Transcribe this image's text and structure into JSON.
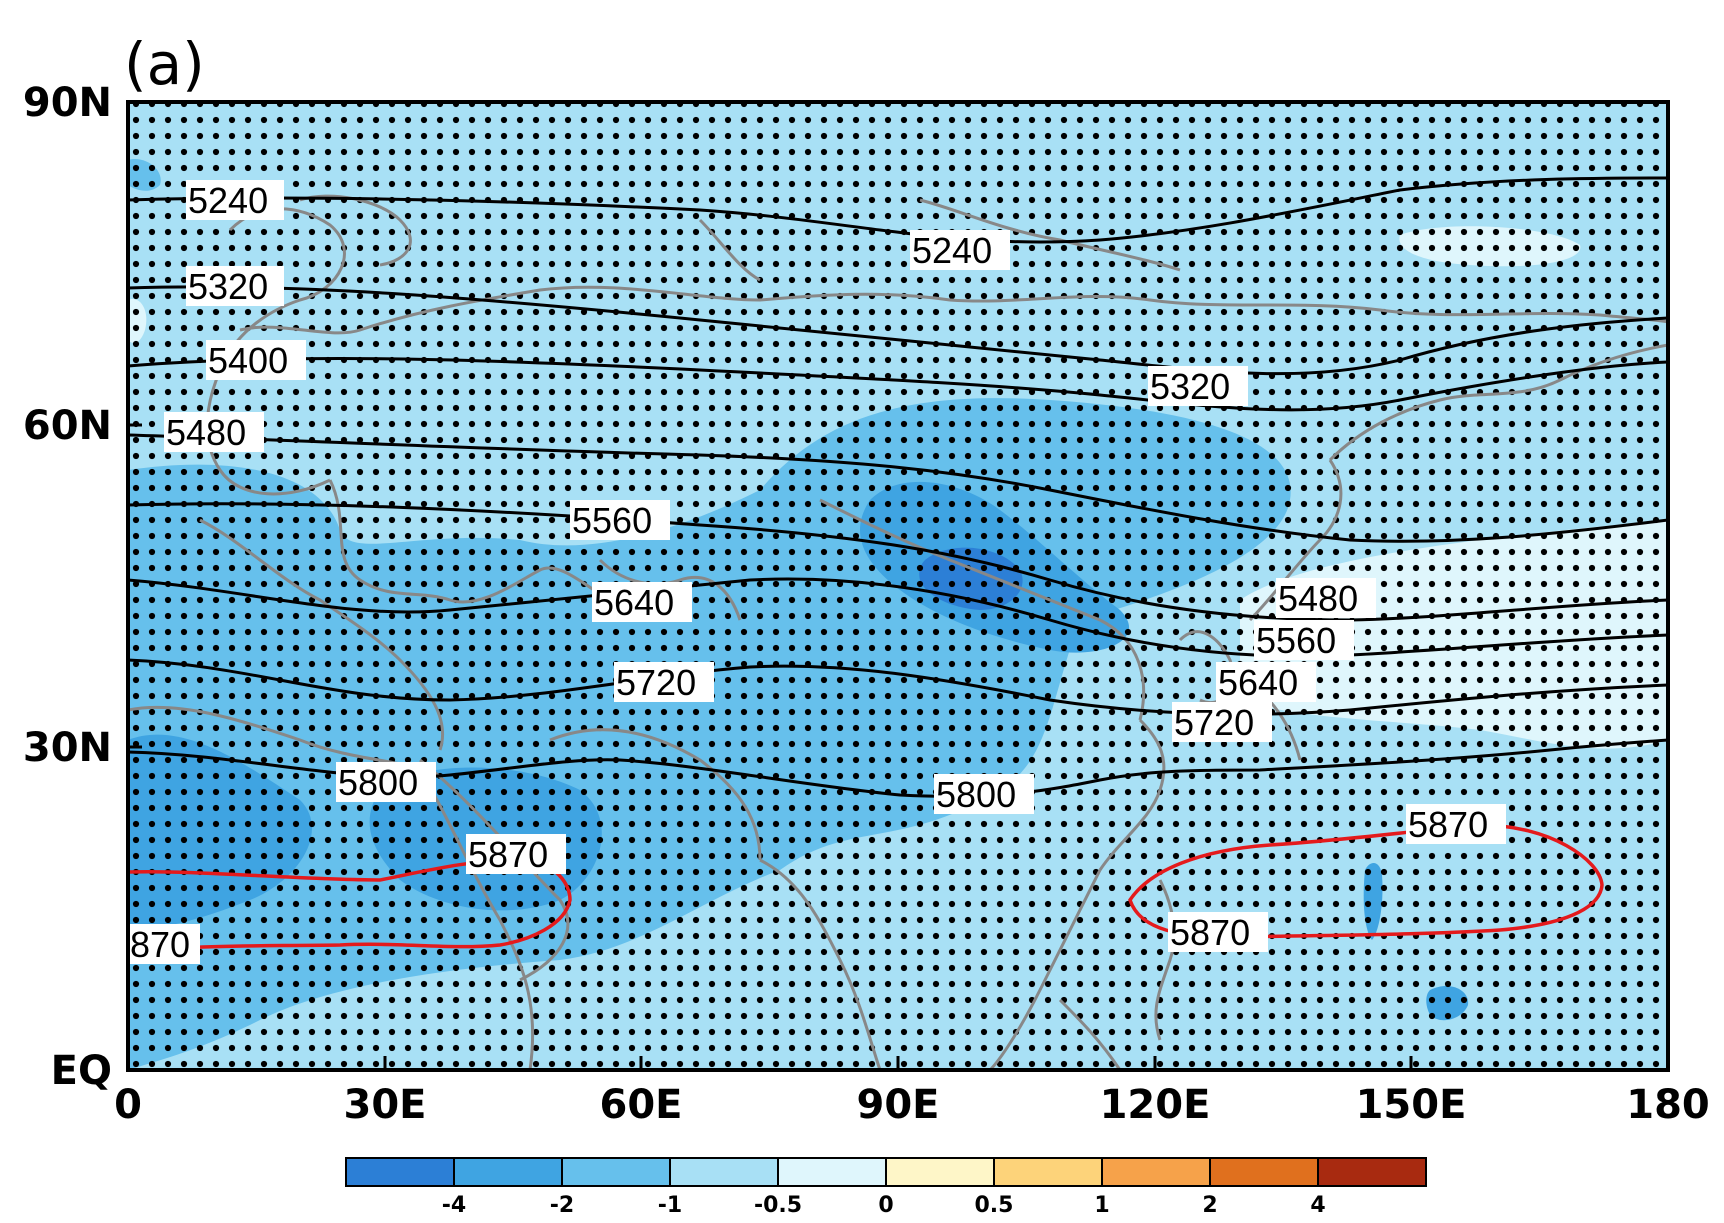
{
  "panel_label": "(a)",
  "map": {
    "projection": "cylindrical equidistant",
    "lon_range": [
      0,
      180
    ],
    "lat_range": [
      0,
      90
    ],
    "x_ticks": [
      "0",
      "30E",
      "60E",
      "90E",
      "120E",
      "150E",
      "180"
    ],
    "y_ticks": [
      "EQ",
      "30N",
      "60N",
      "90N"
    ],
    "colors": {
      "background_shade": "#a8e0f5",
      "light_shade": "#dff6fc",
      "mid_shade": "#66c0ec",
      "strong_shade": "#3fa4e2",
      "strongest_shade": "#2c7fd6",
      "contour": "#000000",
      "contour_5870": "#e41a1c",
      "coastline": "#888888",
      "stipple": "#000000"
    }
  },
  "contours": {
    "black_labels": [
      "5240",
      "5240",
      "5320",
      "5320",
      "5400",
      "5480",
      "5480",
      "5560",
      "5560",
      "5640",
      "5640",
      "5720",
      "5720",
      "5800",
      "5800"
    ],
    "red_labels": [
      "5870",
      "870",
      "5870",
      "5870"
    ]
  },
  "colorbar": {
    "labels": [
      "-4",
      "-2",
      "-1",
      "-0.5",
      "0",
      "0.5",
      "1",
      "2",
      "4"
    ],
    "colors": [
      "#2c7fd6",
      "#3fa4e2",
      "#66c0ec",
      "#a8e0f5",
      "#dff6fc",
      "#fef6c8",
      "#fdd37a",
      "#f6a24a",
      "#e0701e",
      "#a82a10"
    ]
  }
}
